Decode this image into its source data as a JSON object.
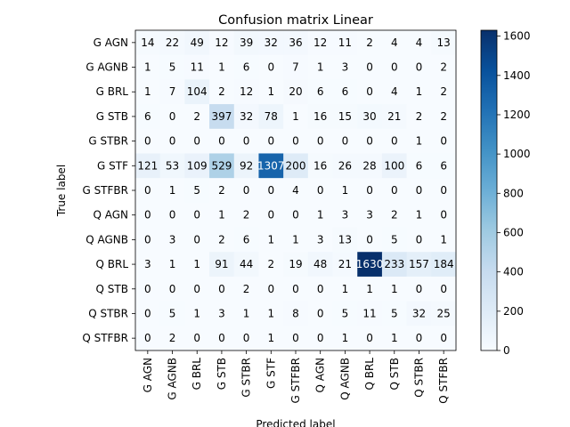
{
  "chart_data": {
    "type": "heatmap",
    "title": "Confusion matrix Linear",
    "xlabel": "Predicted label",
    "ylabel": "True label",
    "labels": [
      "G AGN",
      "G AGNB",
      "G BRL",
      "G STB",
      "G STBR",
      "G STF",
      "G STFBR",
      "Q AGN",
      "Q AGNB",
      "Q BRL",
      "Q STB",
      "Q STBR",
      "Q STFBR"
    ],
    "matrix": [
      [
        14,
        22,
        49,
        12,
        39,
        32,
        36,
        12,
        11,
        2,
        4,
        4,
        13
      ],
      [
        1,
        5,
        11,
        1,
        6,
        0,
        7,
        1,
        3,
        0,
        0,
        0,
        2
      ],
      [
        1,
        7,
        104,
        2,
        12,
        1,
        20,
        6,
        6,
        0,
        4,
        1,
        2
      ],
      [
        6,
        0,
        2,
        397,
        32,
        78,
        1,
        16,
        15,
        30,
        21,
        2,
        2
      ],
      [
        0,
        0,
        0,
        0,
        0,
        0,
        0,
        0,
        0,
        0,
        0,
        1,
        0
      ],
      [
        121,
        53,
        109,
        529,
        92,
        1307,
        200,
        16,
        26,
        28,
        100,
        6,
        6
      ],
      [
        0,
        1,
        5,
        2,
        0,
        0,
        4,
        0,
        1,
        0,
        0,
        0,
        0
      ],
      [
        0,
        0,
        0,
        1,
        2,
        0,
        0,
        1,
        3,
        3,
        2,
        1,
        0
      ],
      [
        0,
        3,
        0,
        2,
        6,
        1,
        1,
        3,
        13,
        0,
        5,
        0,
        1
      ],
      [
        3,
        1,
        1,
        91,
        44,
        2,
        19,
        48,
        21,
        1630,
        233,
        157,
        184
      ],
      [
        0,
        0,
        0,
        0,
        2,
        0,
        0,
        0,
        1,
        1,
        1,
        0,
        0
      ],
      [
        0,
        5,
        1,
        3,
        1,
        1,
        8,
        0,
        5,
        11,
        5,
        32,
        25
      ],
      [
        0,
        2,
        0,
        0,
        0,
        1,
        0,
        0,
        1,
        0,
        1,
        0,
        0
      ]
    ],
    "colormap": "Blues",
    "vmin": 0,
    "vmax": 1630,
    "colorbar_ticks": [
      0,
      200,
      400,
      600,
      800,
      1000,
      1200,
      1400,
      1600
    ],
    "grid": false
  }
}
